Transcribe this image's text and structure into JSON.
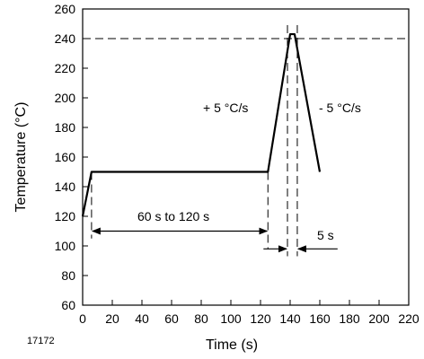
{
  "chart_data": {
    "type": "line",
    "figure_id": "17172",
    "xlabel": "Time (s)",
    "ylabel": "Temperature (°C)",
    "xlim": [
      0,
      220
    ],
    "ylim": [
      60,
      260
    ],
    "xticks": [
      0,
      20,
      40,
      60,
      80,
      100,
      120,
      140,
      160,
      180,
      200,
      220
    ],
    "yticks": [
      60,
      80,
      100,
      120,
      140,
      160,
      180,
      200,
      220,
      240,
      260
    ],
    "grid": false,
    "legend": "none",
    "series": [
      {
        "x": [
          0,
          6,
          125,
          140,
          143,
          160
        ],
        "y": [
          120,
          150,
          150,
          243,
          243,
          150
        ]
      }
    ],
    "reference_lines": [
      {
        "orientation": "horizontal",
        "style": "dashed",
        "y": 240
      }
    ],
    "annotations": [
      {
        "text": "+ 5 °C/s"
      },
      {
        "text": "- 5 °C/s"
      },
      {
        "text": "60 s to 120 s"
      },
      {
        "text": "5 s"
      }
    ]
  }
}
